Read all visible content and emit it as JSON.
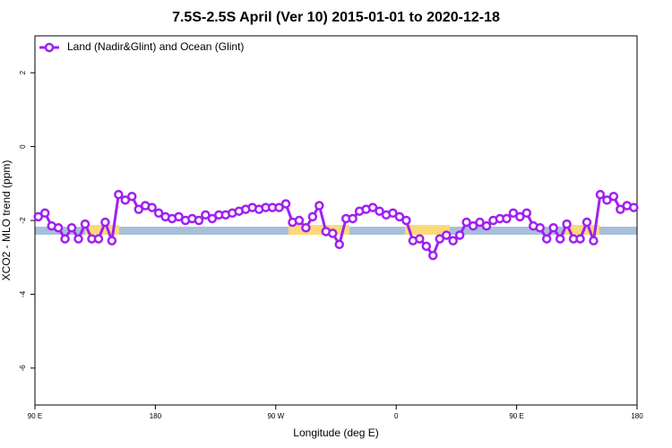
{
  "chart_data": {
    "type": "line",
    "title": "7.5S-2.5S April (Ver 10)   2015-01-01 to 2020-12-18",
    "xlabel": "Longitude (deg E)",
    "ylabel": "XCO2 - MLO trend (ppm)",
    "xlim": [
      90,
      540
    ],
    "xticks": [
      {
        "value": 90,
        "label": "90 E"
      },
      180,
      {
        "value": 270,
        "label": "90 W"
      },
      {
        "value": 360,
        "label": "0"
      },
      {
        "value": 450,
        "label": "90 E"
      },
      {
        "value": 540,
        "label": "180"
      }
    ],
    "ylim": [
      -7,
      3
    ],
    "yticks": [
      -6,
      -4,
      -2,
      0,
      2
    ],
    "legend": "upper left",
    "x": [
      92.5,
      97.5,
      102.5,
      107.5,
      112.5,
      117.5,
      122.5,
      127.5,
      132.5,
      137.5,
      142.5,
      147.5,
      152.5,
      157.5,
      162.5,
      167.5,
      172.5,
      177.5,
      182.5,
      187.5,
      192.5,
      197.5,
      202.5,
      207.5,
      212.5,
      217.5,
      222.5,
      227.5,
      232.5,
      237.5,
      242.5,
      247.5,
      252.5,
      257.5,
      262.5,
      267.5,
      272.5,
      277.5,
      282.5,
      287.5,
      292.5,
      297.5,
      302.5,
      307.5,
      312.5,
      317.5,
      322.5,
      327.5,
      332.5,
      337.5,
      342.5,
      347.5,
      352.5,
      357.5,
      362.5,
      367.5,
      372.5,
      377.5,
      382.5,
      387.5,
      392.5,
      397.5,
      402.5,
      407.5,
      412.5,
      417.5,
      422.5,
      427.5,
      432.5,
      437.5,
      442.5,
      447.5,
      452.5,
      457.5,
      462.5,
      467.5,
      472.5,
      477.5,
      482.5,
      487.5,
      492.5,
      497.5,
      502.5,
      507.5,
      512.5,
      517.5,
      522.5,
      527.5,
      532.5,
      537.5
    ],
    "series": [
      {
        "name": "Land (Nadir&Glint) and Ocean (Glint)",
        "color": "#a020f0",
        "values": [
          -1.9,
          -1.8,
          -2.15,
          -2.2,
          -2.5,
          -2.2,
          -2.5,
          -2.1,
          -2.5,
          -2.5,
          -2.05,
          -2.55,
          -1.3,
          -1.45,
          -1.35,
          -1.7,
          -1.6,
          -1.65,
          -1.8,
          -1.9,
          -1.95,
          -1.9,
          -2.0,
          -1.95,
          -2.0,
          -1.85,
          -1.95,
          -1.85,
          -1.85,
          -1.8,
          -1.75,
          -1.7,
          -1.65,
          -1.7,
          -1.65,
          -1.65,
          -1.65,
          -1.55,
          -2.05,
          -2.0,
          -2.2,
          -1.9,
          -1.6,
          -2.3,
          -2.35,
          -2.65,
          -1.95,
          -1.95,
          -1.75,
          -1.7,
          -1.65,
          -1.75,
          -1.85,
          -1.8,
          -1.9,
          -2.0,
          -2.55,
          -2.5,
          -2.7,
          -2.95,
          -2.5,
          -2.4,
          -2.55,
          -2.4,
          -2.05,
          -2.15,
          -2.05,
          -2.15,
          -2.0,
          -1.95,
          -1.95,
          -1.8,
          -1.9,
          -1.8,
          -2.15,
          -2.2,
          -2.5,
          -2.2,
          -2.5,
          -2.1,
          -2.5,
          -2.5,
          -2.05,
          -2.55,
          -1.3,
          -1.45,
          -1.35,
          -1.7,
          -1.6,
          -1.65
        ]
      }
    ]
  }
}
